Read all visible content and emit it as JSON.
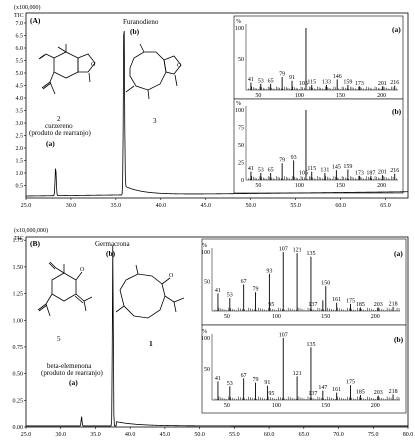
{
  "chart_data": [
    {
      "type": "line",
      "panel_label": "(A)",
      "scale_text": "(x100,000)",
      "y_axis_text": "TIC",
      "xlim": [
        25.0,
        67.5
      ],
      "ylim": [
        0,
        7.4
      ],
      "x_ticks": [
        25.0,
        30.0,
        35.0,
        40.0,
        45.0,
        50.0,
        55.0,
        60.0,
        65.0
      ],
      "y_ticks": [
        0.5,
        1.0,
        1.5,
        2.0,
        2.5,
        3.0,
        3.5,
        4.0,
        4.5,
        5.0,
        5.5,
        6.0,
        6.5,
        7.0
      ],
      "peaks": [
        {
          "x": 28.3,
          "y": 1.15,
          "label": "(a)"
        },
        {
          "x": 35.9,
          "y": 7.25,
          "label": "(b)"
        }
      ],
      "annotations": {
        "peak_b_name": "Furanodieno",
        "peak_b_label": "(b)",
        "peak_a_label": "(a)",
        "compound_a_num": "2",
        "compound_a_name": "curzereno",
        "compound_a_note": "(produto de rearranjo)",
        "compound_b_num": "3"
      },
      "insets": [
        {
          "id": "(a)",
          "y_title": "%",
          "y_ticks": [
            50,
            100
          ],
          "x_ticks": [
            50,
            100,
            150,
            200
          ],
          "xlim": [
            35,
            220
          ],
          "base_peak": "108",
          "peaks": [
            [
              41,
              12
            ],
            [
              53,
              10
            ],
            [
              65,
              10
            ],
            [
              79,
              21
            ],
            [
              91,
              15
            ],
            [
              108,
              100
            ],
            [
              115,
              8
            ],
            [
              133,
              8
            ],
            [
              146,
              17
            ],
            [
              159,
              8
            ],
            [
              173,
              6
            ],
            [
              201,
              6
            ],
            [
              216,
              7
            ]
          ],
          "labels": [
            [
              41,
              "41"
            ],
            [
              53,
              "53"
            ],
            [
              65,
              "65"
            ],
            [
              79,
              "79"
            ],
            [
              91,
              "91"
            ],
            [
              105,
              "105"
            ],
            [
              115,
              "115"
            ],
            [
              133,
              "133"
            ],
            [
              146,
              "146"
            ],
            [
              159,
              "159"
            ],
            [
              173,
              "173"
            ],
            [
              201,
              "201"
            ],
            [
              216,
              "216"
            ]
          ]
        },
        {
          "id": "(b)",
          "y_title": "%",
          "y_ticks": [
            0,
            25,
            50,
            75,
            100
          ],
          "x_ticks": [
            50,
            100,
            150,
            200
          ],
          "xlim": [
            35,
            220
          ],
          "base_peak": "108",
          "peaks": [
            [
              41,
              12
            ],
            [
              53,
              10
            ],
            [
              65,
              10
            ],
            [
              79,
              24
            ],
            [
              93,
              28
            ],
            [
              108,
              100
            ],
            [
              115,
              12
            ],
            [
              131,
              10
            ],
            [
              145,
              14
            ],
            [
              159,
              15
            ],
            [
              173,
              6
            ],
            [
              187,
              6
            ],
            [
              201,
              7
            ],
            [
              216,
              9
            ]
          ],
          "labels": [
            [
              41,
              "41"
            ],
            [
              53,
              "53"
            ],
            [
              65,
              "65"
            ],
            [
              79,
              "79"
            ],
            [
              93,
              "93"
            ],
            [
              105,
              "105"
            ],
            [
              115,
              "115"
            ],
            [
              131,
              "131"
            ],
            [
              145,
              "145"
            ],
            [
              159,
              "159"
            ],
            [
              173,
              "173"
            ],
            [
              187,
              "187"
            ],
            [
              201,
              "201"
            ],
            [
              216,
              "216"
            ]
          ]
        }
      ]
    },
    {
      "type": "line",
      "panel_label": "(B)",
      "scale_text": "(x10,000,000)",
      "y_axis_text": "TIC",
      "xlim": [
        25.0,
        80.0
      ],
      "ylim": [
        0,
        1.78
      ],
      "x_ticks": [
        25.0,
        30.0,
        35.0,
        40.0,
        45.0,
        50.0,
        55.0,
        60.0,
        65.0,
        70.0,
        75.0,
        80.0
      ],
      "y_ticks": [
        0.0,
        0.25,
        0.5,
        0.75,
        1.0,
        1.25,
        1.5,
        1.75
      ],
      "peaks": [
        {
          "x": 33.0,
          "y": 0.09,
          "label": "(a)"
        },
        {
          "x": 37.5,
          "y": 1.7,
          "label": "(b)"
        }
      ],
      "annotations": {
        "peak_b_name": "Germacrona",
        "peak_b_label": "(b)",
        "peak_a_label": "(a)",
        "compound_a_num": "5",
        "compound_a_name": "beta-elemenona",
        "compound_a_note": "(produto de rearranjo)",
        "compound_b_num": "1"
      },
      "insets": [
        {
          "id": "(a)",
          "y_title": "%",
          "y_ticks": [
            50,
            100
          ],
          "x_ticks": [
            50,
            100,
            150,
            200
          ],
          "xlim": [
            35,
            225
          ],
          "base_peak": "107",
          "peaks": [
            [
              41,
              30
            ],
            [
              53,
              22
            ],
            [
              67,
              45
            ],
            [
              79,
              32
            ],
            [
              93,
              63
            ],
            [
              107,
              100
            ],
            [
              121,
              98
            ],
            [
              135,
              92
            ],
            [
              147,
              18
            ],
            [
              150,
              42
            ],
            [
              161,
              14
            ],
            [
              175,
              12
            ],
            [
              185,
              6
            ],
            [
              203,
              6
            ],
            [
              218,
              7
            ]
          ],
          "labels": [
            [
              41,
              "41"
            ],
            [
              53,
              "53"
            ],
            [
              67,
              "67"
            ],
            [
              79,
              "79"
            ],
            [
              93,
              "93"
            ],
            [
              95,
              "95"
            ],
            [
              107,
              "107"
            ],
            [
              121,
              "121"
            ],
            [
              135,
              "135"
            ],
            [
              137,
              "137"
            ],
            [
              150,
              "150"
            ],
            [
              161,
              "161"
            ],
            [
              175,
              "175"
            ],
            [
              185,
              "185"
            ],
            [
              203,
              "203"
            ],
            [
              218,
              "218"
            ]
          ]
        },
        {
          "id": "(b)",
          "y_title": "%",
          "y_ticks": [
            50,
            100
          ],
          "x_ticks": [
            50,
            100,
            150,
            200
          ],
          "xlim": [
            35,
            225
          ],
          "base_peak": "107",
          "peaks": [
            [
              41,
              30
            ],
            [
              53,
              22
            ],
            [
              67,
              35
            ],
            [
              79,
              28
            ],
            [
              91,
              23
            ],
            [
              107,
              100
            ],
            [
              121,
              38
            ],
            [
              135,
              85
            ],
            [
              147,
              15
            ],
            [
              161,
              12
            ],
            [
              175,
              24
            ],
            [
              185,
              8
            ],
            [
              203,
              7
            ],
            [
              218,
              9
            ]
          ],
          "labels": [
            [
              41,
              "41"
            ],
            [
              53,
              "53"
            ],
            [
              67,
              "67"
            ],
            [
              79,
              "79"
            ],
            [
              91,
              "91"
            ],
            [
              95,
              "95"
            ],
            [
              107,
              "107"
            ],
            [
              121,
              "121"
            ],
            [
              135,
              "135"
            ],
            [
              137,
              "137"
            ],
            [
              147,
              "147"
            ],
            [
              161,
              "161"
            ],
            [
              175,
              "175"
            ],
            [
              185,
              "185"
            ],
            [
              203,
              "203"
            ],
            [
              218,
              "218"
            ]
          ]
        }
      ]
    }
  ]
}
